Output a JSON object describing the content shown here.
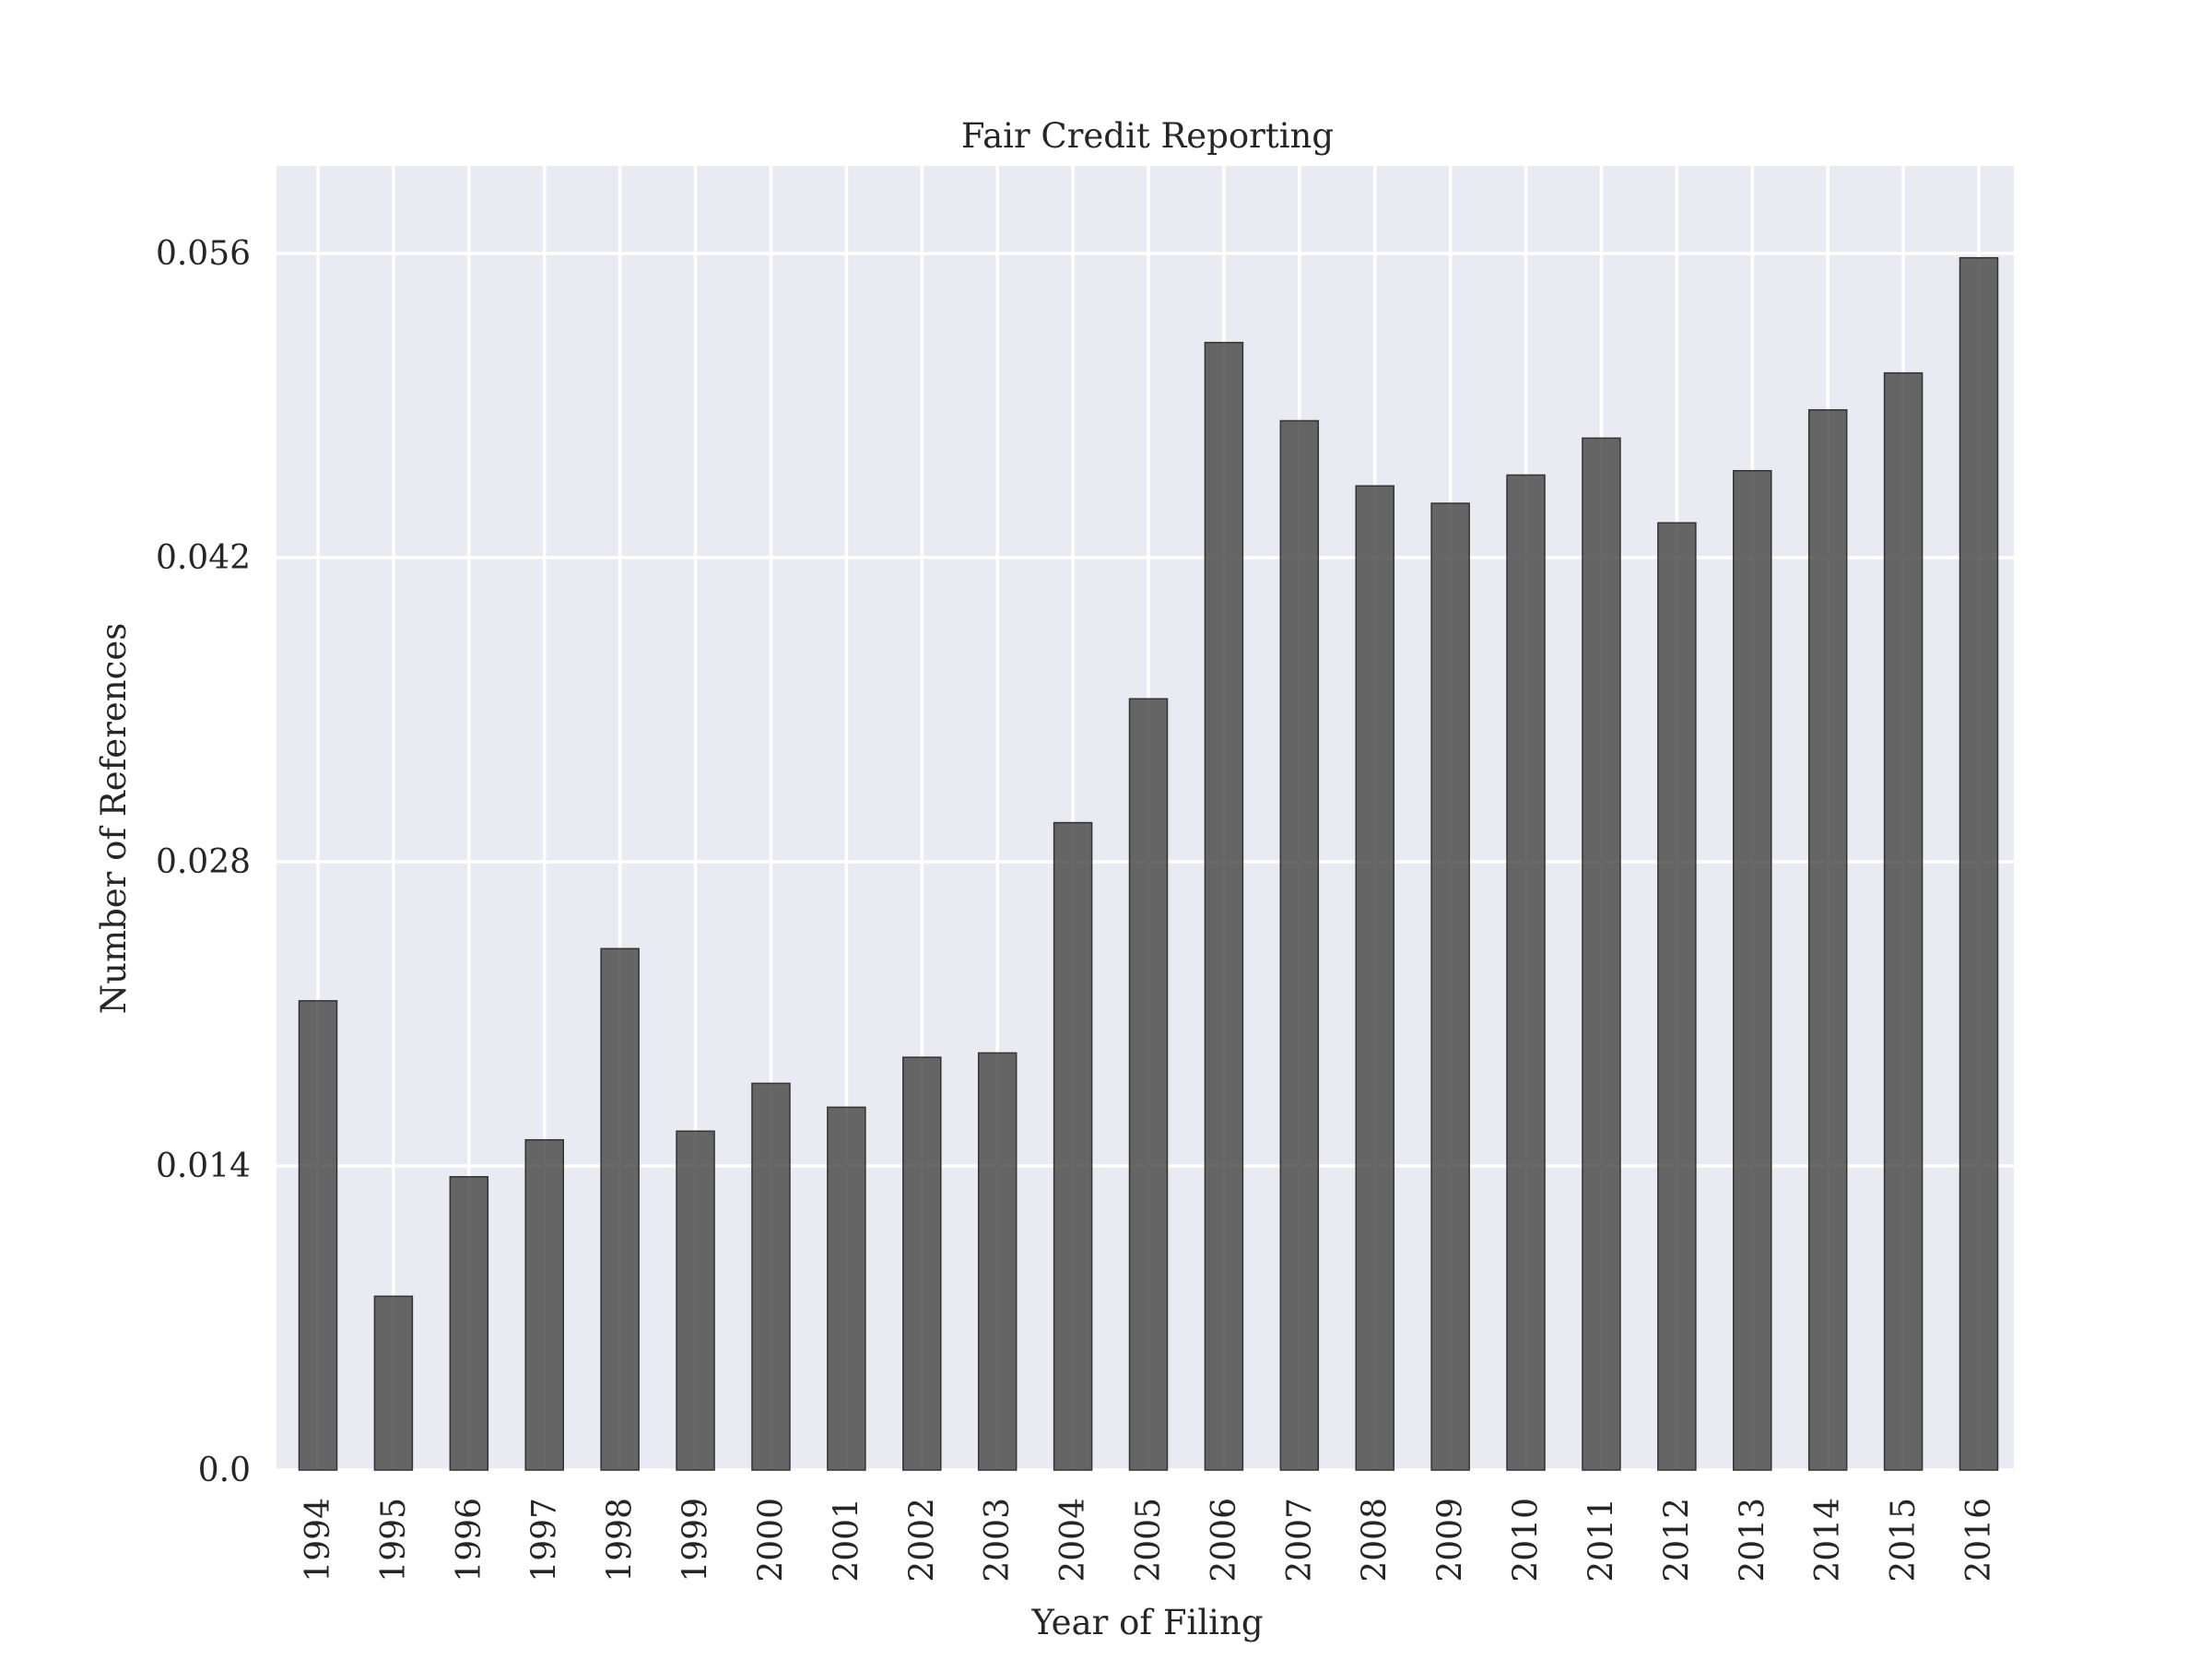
{
  "chart_data": {
    "type": "bar",
    "title": "Fair Credit Reporting",
    "xlabel": "Year of Filing",
    "ylabel": "Number of References",
    "categories": [
      "1994",
      "1995",
      "1996",
      "1997",
      "1998",
      "1999",
      "2000",
      "2001",
      "2002",
      "2003",
      "2004",
      "2005",
      "2006",
      "2007",
      "2008",
      "2009",
      "2010",
      "2011",
      "2012",
      "2013",
      "2014",
      "2015",
      "2016"
    ],
    "values": [
      0.0216,
      0.008,
      0.0135,
      0.0152,
      0.024,
      0.0156,
      0.0178,
      0.0167,
      0.019,
      0.0192,
      0.0298,
      0.0355,
      0.0519,
      0.0483,
      0.0453,
      0.0445,
      0.0458,
      0.0475,
      0.0436,
      0.046,
      0.0488,
      0.0505,
      0.0558
    ],
    "yticks": [
      0.0,
      0.014,
      0.028,
      0.042,
      0.056
    ],
    "ytick_labels": [
      "0.0",
      "0.014",
      "0.028",
      "0.042",
      "0.056"
    ],
    "ylim": [
      0,
      0.06
    ],
    "grid": true,
    "bar_color": "#4d4d4d",
    "background_color": "#eaeaf2"
  }
}
